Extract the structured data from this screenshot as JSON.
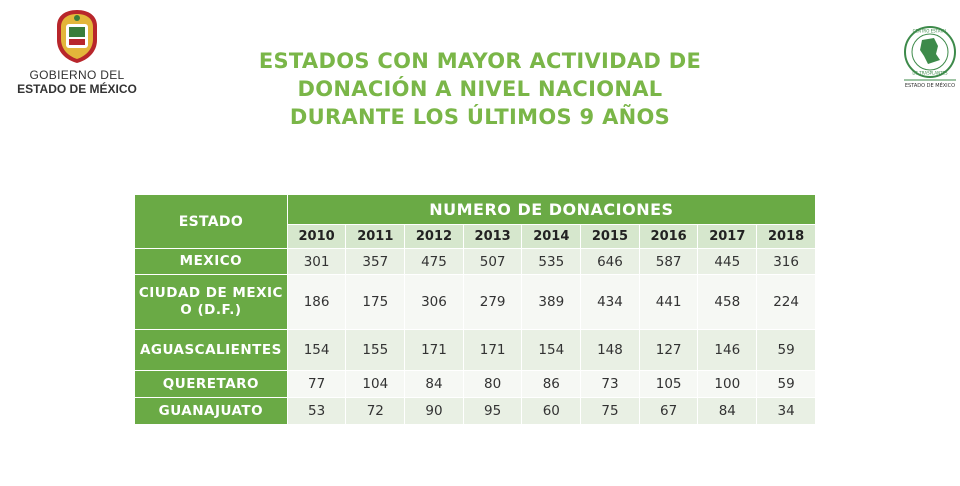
{
  "header": {
    "org_line1": "GOBIERNO DEL",
    "org_line2": "ESTADO DE MÉXICO",
    "title_line1": "ESTADOS CON MAYOR ACTIVIDAD DE",
    "title_line2": "DONACIÓN A NIVEL NACIONAL",
    "title_line3": "DURANTE LOS ÚLTIMOS 9 AÑOS",
    "right_logo_top": "CENTRO ESTATAL",
    "right_logo_mid": "DE TRASPLANTES",
    "right_logo_bottom": "ESTADO DE MÉXICO"
  },
  "colors": {
    "title_green": "#7ab648",
    "header_green": "#6aaa45",
    "year_bg": "#d6e7cd"
  },
  "table": {
    "state_header": "ESTADO",
    "group_header": "NUMERO DE DONACIONES",
    "years": [
      "2010",
      "2011",
      "2012",
      "2013",
      "2014",
      "2015",
      "2016",
      "2017",
      "2018"
    ],
    "rows": [
      {
        "state": "MEXICO",
        "values": [
          "301",
          "357",
          "475",
          "507",
          "535",
          "646",
          "587",
          "445",
          "316"
        ]
      },
      {
        "state": "CIUDAD DE MEXICO (D.F.)",
        "values": [
          "186",
          "175",
          "306",
          "279",
          "389",
          "434",
          "441",
          "458",
          "224"
        ]
      },
      {
        "state": "AGUASCALIENTES",
        "values": [
          "154",
          "155",
          "171",
          "171",
          "154",
          "148",
          "127",
          "146",
          "59"
        ]
      },
      {
        "state": "QUERETARO",
        "values": [
          "77",
          "104",
          "84",
          "80",
          "86",
          "73",
          "105",
          "100",
          "59"
        ]
      },
      {
        "state": "GUANAJUATO",
        "values": [
          "53",
          "72",
          "90",
          "95",
          "60",
          "75",
          "67",
          "84",
          "34"
        ]
      }
    ]
  }
}
